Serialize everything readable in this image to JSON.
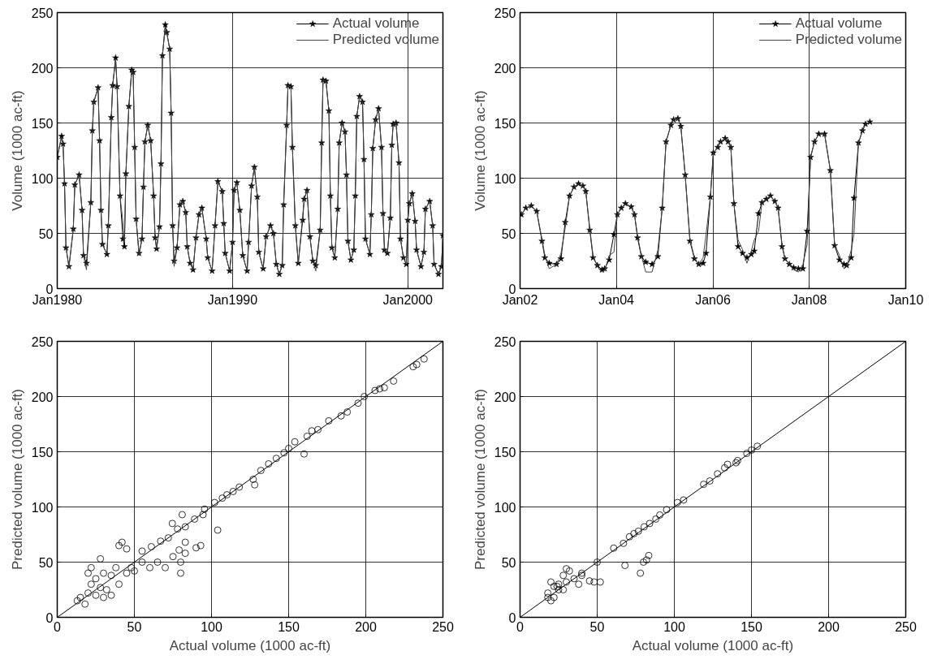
{
  "chart_data": [
    {
      "type": "line",
      "ylabel": "Volume (1000 ac-ft)",
      "xlim": [
        "1980-01",
        "2002-01"
      ],
      "xticks": [
        {
          "value": "1980-01",
          "label": "Jan1980"
        },
        {
          "value": "1990-01",
          "label": "Jan1990"
        },
        {
          "value": "2000-01",
          "label": "Jan2000"
        }
      ],
      "ylim": [
        0,
        250
      ],
      "yticks": [
        0,
        50,
        100,
        150,
        200,
        250
      ],
      "grid": true,
      "legend": "top right",
      "line_style": "solid",
      "series": [
        {
          "name": "Actual volume",
          "color": "#000000",
          "marker": "star",
          "x": [
            "1980-01",
            "1980-04",
            "1980-05",
            "1980-06",
            "1980-07",
            "1980-09",
            "1980-12",
            "1981-01",
            "1981-04",
            "1981-06",
            "1981-07",
            "1981-09",
            "1981-12",
            "1982-01",
            "1982-02",
            "1982-05",
            "1982-06",
            "1982-07",
            "1982-08",
            "1982-11",
            "1982-12",
            "1983-02",
            "1983-03",
            "1983-05",
            "1983-06",
            "1983-08",
            "1983-10",
            "1983-11",
            "1983-12",
            "1984-02",
            "1984-04",
            "1984-05",
            "1984-06",
            "1984-07",
            "1984-09",
            "1984-11",
            "1984-12",
            "1985-01",
            "1985-03",
            "1985-05",
            "1985-07",
            "1985-08",
            "1985-09",
            "1985-11",
            "1985-12",
            "1986-01",
            "1986-03",
            "1986-04",
            "1986-06",
            "1986-07",
            "1986-08",
            "1986-09",
            "1986-11",
            "1987-01",
            "1987-03",
            "1987-05",
            "1987-06",
            "1987-08",
            "1987-10",
            "1987-12",
            "1988-02",
            "1988-04",
            "1988-07",
            "1988-08",
            "1988-11",
            "1989-01",
            "1989-03",
            "1989-06",
            "1989-07",
            "1989-08",
            "1989-11",
            "1990-01",
            "1990-02",
            "1990-04",
            "1990-06",
            "1990-08",
            "1990-11",
            "1990-12",
            "1991-02",
            "1991-04",
            "1991-06",
            "1991-07",
            "1991-10",
            "1991-12",
            "1992-03",
            "1992-05",
            "1992-07",
            "1992-09",
            "1992-11",
            "1992-12",
            "1993-02",
            "1993-03",
            "1993-05",
            "1993-06",
            "1993-08",
            "1993-10",
            "1994-01",
            "1994-02",
            "1994-04",
            "1994-06",
            "1994-08",
            "1994-10",
            "1995-01",
            "1995-02",
            "1995-03",
            "1995-05",
            "1995-07",
            "1995-08",
            "1995-09",
            "1995-11",
            "1996-01",
            "1996-02",
            "1996-04",
            "1996-06",
            "1996-07",
            "1996-08",
            "1996-10",
            "1996-12",
            "1997-01",
            "1997-02",
            "1997-04",
            "1997-06",
            "1997-07",
            "1997-08",
            "1997-11",
            "1997-12",
            "1998-01",
            "1998-03",
            "1998-05",
            "1998-07",
            "1998-08",
            "1998-09",
            "1998-11",
            "1999-01",
            "1999-02",
            "1999-03",
            "1999-05",
            "1999-07",
            "1999-08",
            "1999-10",
            "1999-12",
            "2000-01",
            "2000-02",
            "2000-04",
            "2000-06",
            "2000-07",
            "2000-10",
            "2000-12",
            "2001-01",
            "2001-04",
            "2001-06",
            "2001-07",
            "2001-10",
            "2001-12",
            "2002-01"
          ],
          "values": [
            119,
            138,
            131,
            95,
            37,
            20,
            54,
            94,
            103,
            71,
            30,
            23,
            78,
            143,
            169,
            182,
            134,
            71,
            40,
            31,
            57,
            155,
            184,
            209,
            183,
            84,
            45,
            38,
            104,
            165,
            198,
            196,
            128,
            63,
            32,
            45,
            92,
            133,
            148,
            134,
            84,
            46,
            36,
            56,
            113,
            211,
            239,
            232,
            217,
            159,
            57,
            25,
            37,
            76,
            79,
            69,
            38,
            23,
            17,
            46,
            67,
            73,
            45,
            28,
            16,
            57,
            97,
            88,
            59,
            32,
            16,
            42,
            89,
            96,
            71,
            30,
            16,
            42,
            93,
            110,
            83,
            33,
            18,
            47,
            57,
            50,
            22,
            13,
            21,
            76,
            148,
            184,
            183,
            128,
            57,
            23,
            62,
            81,
            89,
            47,
            25,
            21,
            53,
            132,
            189,
            188,
            161,
            84,
            37,
            28,
            72,
            132,
            150,
            142,
            103,
            43,
            26,
            35,
            84,
            156,
            174,
            169,
            117,
            45,
            31,
            67,
            127,
            153,
            163,
            128,
            68,
            35,
            32,
            64,
            130,
            149,
            150,
            114,
            45,
            28,
            22,
            62,
            77,
            86,
            61,
            35,
            20,
            33,
            72,
            79,
            57,
            22,
            13,
            20,
            48
          ]
        },
        {
          "name": "Predicted volume",
          "color": "#444444",
          "marker": "none",
          "x": [
            "1980-01",
            "1980-04",
            "1980-05",
            "1980-06",
            "1980-07",
            "1980-09",
            "1980-12",
            "1981-01",
            "1981-04",
            "1981-06",
            "1981-07",
            "1981-09",
            "1981-12",
            "1982-01",
            "1982-02",
            "1982-05",
            "1982-06",
            "1982-07",
            "1982-08",
            "1982-11",
            "1982-12",
            "1983-02",
            "1983-03",
            "1983-05",
            "1983-06",
            "1983-08",
            "1983-10",
            "1983-11",
            "1983-12",
            "1984-02",
            "1984-04",
            "1984-05",
            "1984-06",
            "1984-07",
            "1984-09",
            "1984-11",
            "1984-12",
            "1985-01",
            "1985-03",
            "1985-05",
            "1985-07",
            "1985-08",
            "1985-09",
            "1985-11",
            "1985-12",
            "1986-01",
            "1986-03",
            "1986-04",
            "1986-06",
            "1986-07",
            "1986-08",
            "1986-09",
            "1986-11",
            "1987-01",
            "1987-03",
            "1987-05",
            "1987-06",
            "1987-08",
            "1987-10",
            "1987-12",
            "1988-02",
            "1988-04",
            "1988-07",
            "1988-08",
            "1988-11",
            "1989-01",
            "1989-03",
            "1989-06",
            "1989-07",
            "1989-08",
            "1989-11",
            "1990-01",
            "1990-02",
            "1990-04",
            "1990-06",
            "1990-08",
            "1990-11",
            "1990-12",
            "1991-02",
            "1991-04",
            "1991-06",
            "1991-07",
            "1991-10",
            "1991-12",
            "1992-03",
            "1992-05",
            "1992-07",
            "1992-09",
            "1992-11",
            "1992-12",
            "1993-02",
            "1993-03",
            "1993-05",
            "1993-06",
            "1993-08",
            "1993-10",
            "1994-01",
            "1994-02",
            "1994-04",
            "1994-06",
            "1994-08",
            "1994-10",
            "1995-01",
            "1995-02",
            "1995-03",
            "1995-05",
            "1995-07",
            "1995-08",
            "1995-09",
            "1995-11",
            "1996-01",
            "1996-02",
            "1996-04",
            "1996-06",
            "1996-07",
            "1996-08",
            "1996-10",
            "1996-12",
            "1997-01",
            "1997-02",
            "1997-04",
            "1997-06",
            "1997-07",
            "1997-08",
            "1997-11",
            "1997-12",
            "1998-01",
            "1998-03",
            "1998-05",
            "1998-07",
            "1998-08",
            "1998-09",
            "1998-11",
            "1999-01",
            "1999-02",
            "1999-03",
            "1999-05",
            "1999-07",
            "1999-08",
            "1999-10",
            "1999-12",
            "2000-01",
            "2000-02",
            "2000-04",
            "2000-06",
            "2000-07",
            "2000-10",
            "2000-12",
            "2001-01",
            "2001-04",
            "2001-06",
            "2001-07",
            "2001-10",
            "2001-12",
            "2002-01"
          ],
          "values": [
            119,
            137,
            131,
            95,
            38,
            19,
            54,
            94,
            103,
            71,
            30,
            17,
            78,
            143,
            169,
            182,
            134,
            71,
            40,
            31,
            57,
            155,
            184,
            208,
            183,
            84,
            60,
            42,
            104,
            165,
            198,
            196,
            128,
            63,
            30,
            45,
            92,
            133,
            148,
            134,
            84,
            46,
            36,
            56,
            113,
            211,
            237,
            232,
            217,
            159,
            57,
            20,
            37,
            76,
            79,
            69,
            38,
            23,
            17,
            46,
            67,
            73,
            45,
            28,
            16,
            57,
            97,
            88,
            59,
            32,
            16,
            42,
            89,
            96,
            71,
            30,
            16,
            42,
            93,
            110,
            83,
            33,
            18,
            47,
            57,
            50,
            22,
            13,
            21,
            76,
            148,
            184,
            183,
            128,
            57,
            23,
            66,
            81,
            89,
            47,
            25,
            16,
            53,
            132,
            189,
            188,
            161,
            84,
            37,
            28,
            72,
            132,
            150,
            142,
            103,
            43,
            26,
            35,
            84,
            156,
            174,
            169,
            117,
            45,
            31,
            67,
            127,
            153,
            163,
            128,
            68,
            35,
            32,
            64,
            130,
            149,
            150,
            114,
            45,
            28,
            22,
            62,
            77,
            86,
            61,
            35,
            20,
            33,
            72,
            79,
            57,
            22,
            13,
            20,
            48
          ]
        }
      ]
    },
    {
      "type": "line",
      "ylabel": "Volume (1000 ac-ft)",
      "xlim": [
        "2002-01",
        "2010-01"
      ],
      "xticks": [
        {
          "value": "2002-01",
          "label": "Jan02"
        },
        {
          "value": "2004-01",
          "label": "Jan04"
        },
        {
          "value": "2006-01",
          "label": "Jan06"
        },
        {
          "value": "2008-01",
          "label": "Jan08"
        },
        {
          "value": "2010-01",
          "label": "Jan10"
        }
      ],
      "ylim": [
        0,
        250
      ],
      "yticks": [
        0,
        50,
        100,
        150,
        200,
        250
      ],
      "grid": true,
      "legend": "top right",
      "line_style": "solid",
      "series": [
        {
          "name": "Actual volume",
          "color": "#000000",
          "marker": "star",
          "x": [
            "2002-01-11",
            "2002-02-14",
            "2002-03-27",
            "2002-05-07",
            "2002-06-16",
            "2002-07-08",
            "2002-08-10",
            "2002-10-04",
            "2002-11-07",
            "2002-12-09",
            "2003-01-11",
            "2003-02-14",
            "2003-03-20",
            "2003-04-22",
            "2003-05-14",
            "2003-06-13",
            "2003-07-08",
            "2003-08-10",
            "2003-09-13",
            "2003-10-04",
            "2003-11-07",
            "2003-12-13",
            "2004-01-08",
            "2004-02-07",
            "2004-03-09",
            "2004-04-22",
            "2004-05-17",
            "2004-06-09",
            "2004-07-08",
            "2004-08-10",
            "2004-09-27",
            "2004-11-10",
            "2004-12-13",
            "2005-01-11",
            "2005-02-17",
            "2005-03-09",
            "2005-04-11",
            "2005-05-03",
            "2005-06-05",
            "2005-07-11",
            "2005-08-14",
            "2005-09-16",
            "2005-10-19",
            "2005-11-10",
            "2005-12-13",
            "2006-01-04",
            "2006-02-07",
            "2006-02-28",
            "2006-04-04",
            "2006-04-26",
            "2006-05-17",
            "2006-06-09",
            "2006-07-11",
            "2006-08-14",
            "2006-09-16",
            "2006-10-19",
            "2006-11-10",
            "2006-12-13",
            "2007-01-08",
            "2007-02-10",
            "2007-03-13",
            "2007-04-15",
            "2007-05-10",
            "2007-06-09",
            "2007-07-01",
            "2007-08-03",
            "2007-09-05",
            "2007-10-11",
            "2007-11-14",
            "2007-12-16",
            "2008-01-11",
            "2008-02-10",
            "2008-03-13",
            "2008-04-26",
            "2008-06-09",
            "2008-07-11",
            "2008-08-17",
            "2008-09-20",
            "2008-10-11",
            "2008-11-14",
            "2008-12-05",
            "2009-01-08",
            "2009-02-07",
            "2009-03-02",
            "2009-04-04"
          ],
          "values": [
            67,
            73,
            75,
            70,
            43,
            28,
            23,
            22,
            27,
            60,
            84,
            92,
            95,
            93,
            88,
            53,
            28,
            21,
            17,
            18,
            26,
            49,
            67,
            73,
            77,
            74,
            67,
            46,
            29,
            24,
            22,
            29,
            73,
            133,
            148,
            153,
            154,
            147,
            103,
            43,
            27,
            22,
            23,
            32,
            83,
            123,
            128,
            133,
            136,
            133,
            128,
            77,
            38,
            32,
            28,
            31,
            34,
            68,
            78,
            81,
            84,
            79,
            73,
            38,
            27,
            22,
            19,
            18,
            18,
            52,
            119,
            133,
            140,
            140,
            107,
            39,
            26,
            22,
            21,
            28,
            82,
            132,
            143,
            149,
            151
          ]
        },
        {
          "name": "Predicted volume",
          "color": "#444444",
          "marker": "none",
          "x": [
            "2002-01-11",
            "2002-02-14",
            "2002-03-27",
            "2002-05-07",
            "2002-06-16",
            "2002-07-08",
            "2002-08-10",
            "2002-10-04",
            "2002-11-07",
            "2002-12-09",
            "2003-01-11",
            "2003-02-14",
            "2003-03-20",
            "2003-04-22",
            "2003-05-14",
            "2003-06-13",
            "2003-07-08",
            "2003-08-10",
            "2003-09-13",
            "2003-10-04",
            "2003-11-07",
            "2003-12-13",
            "2004-01-08",
            "2004-02-07",
            "2004-03-09",
            "2004-04-22",
            "2004-05-17",
            "2004-06-09",
            "2004-07-08",
            "2004-08-10",
            "2004-09-27",
            "2004-11-10",
            "2004-12-13",
            "2005-01-11",
            "2005-02-17",
            "2005-03-09",
            "2005-04-11",
            "2005-05-03",
            "2005-06-05",
            "2005-07-11",
            "2005-08-14",
            "2005-09-16",
            "2005-10-19",
            "2005-11-10",
            "2005-12-13",
            "2006-01-04",
            "2006-02-07",
            "2006-02-28",
            "2006-04-04",
            "2006-04-26",
            "2006-05-17",
            "2006-06-09",
            "2006-07-11",
            "2006-08-14",
            "2006-09-16",
            "2006-10-19",
            "2006-11-10",
            "2006-12-13",
            "2007-01-08",
            "2007-02-10",
            "2007-03-13",
            "2007-04-15",
            "2007-05-10",
            "2007-06-09",
            "2007-07-01",
            "2007-08-03",
            "2007-09-05",
            "2007-10-11",
            "2007-11-14",
            "2007-12-16",
            "2008-01-11",
            "2008-02-10",
            "2008-03-13",
            "2008-04-26",
            "2008-06-09",
            "2008-07-11",
            "2008-08-17",
            "2008-09-20",
            "2008-10-11",
            "2008-11-14",
            "2008-12-05",
            "2009-01-08",
            "2009-02-07",
            "2009-03-02",
            "2009-04-04"
          ],
          "values": [
            67,
            73,
            75,
            70,
            45,
            30,
            18,
            22,
            32,
            55,
            84,
            92,
            95,
            93,
            88,
            55,
            30,
            20,
            15,
            16,
            30,
            33,
            67,
            73,
            77,
            74,
            67,
            48,
            30,
            15,
            15,
            35,
            73,
            133,
            148,
            153,
            154,
            147,
            103,
            45,
            28,
            22,
            28,
            49,
            83,
            123,
            128,
            133,
            136,
            133,
            128,
            77,
            44,
            35,
            23,
            34,
            44,
            52,
            78,
            81,
            84,
            79,
            73,
            40,
            27,
            22,
            17,
            15,
            22,
            40,
            119,
            133,
            140,
            140,
            107,
            40,
            30,
            18,
            20,
            35,
            49,
            132,
            143,
            149,
            151
          ]
        }
      ]
    },
    {
      "type": "scatter",
      "xlabel": "Actual volume (1000 ac-ft)",
      "ylabel": "Predicted volume (1000 ac-ft)",
      "xlim": [
        0,
        250
      ],
      "xticks": [
        0,
        50,
        100,
        150,
        200,
        250
      ],
      "ylim": [
        0,
        250
      ],
      "yticks": [
        0,
        50,
        100,
        150,
        200,
        250
      ],
      "grid": true,
      "marker": "circle",
      "series": [
        {
          "color": "#000000",
          "x": [
            237.8,
            233,
            230.7,
            218,
            212,
            209,
            206,
            199,
            195,
            188,
            184,
            176,
            169,
            165,
            162,
            160,
            154,
            150,
            147,
            142,
            137,
            132,
            128,
            127,
            118,
            114,
            110,
            107,
            104,
            102,
            95.5,
            94.5,
            89,
            83,
            81,
            78,
            74.6,
            72,
            67,
            83,
            93,
            79,
            83,
            61,
            55,
            13,
            15,
            18,
            20,
            22,
            25,
            25,
            28,
            30,
            32,
            35,
            38,
            40,
            40,
            42,
            45,
            48,
            50,
            20,
            22,
            28,
            30,
            35,
            45,
            55,
            60,
            65,
            70,
            75,
            80,
            80,
            90
          ],
          "values": [
            234,
            229,
            227,
            214,
            208,
            207,
            205.5,
            200,
            194,
            186,
            182.5,
            178,
            170,
            169,
            164,
            148,
            159,
            153,
            149,
            144,
            139,
            133,
            120,
            125,
            118,
            114,
            111,
            108,
            79,
            104,
            98,
            93,
            89,
            82,
            93,
            80,
            85,
            72,
            69,
            68,
            65,
            61,
            58,
            64,
            60,
            15,
            18,
            12,
            22,
            30,
            20,
            35,
            27,
            40,
            25,
            38,
            45,
            30,
            65,
            68,
            40,
            45,
            42,
            40,
            45,
            53,
            18,
            20,
            62,
            50,
            45,
            50,
            45,
            55,
            40,
            50,
            63
          ]
        },
        {
          "type": "line",
          "color": "#000000",
          "marker": "none",
          "x": [
            0,
            250
          ],
          "values": [
            0,
            250
          ]
        }
      ]
    },
    {
      "type": "scatter",
      "xlabel": "Actual volume (1000 ac-ft)",
      "ylabel": "Predicted volume (1000 ac-ft)",
      "xlim": [
        0,
        250
      ],
      "xticks": [
        0,
        50,
        100,
        150,
        200,
        250
      ],
      "ylim": [
        0,
        250
      ],
      "yticks": [
        0,
        50,
        100,
        150,
        200,
        250
      ],
      "grid": true,
      "marker": "circle",
      "series": [
        {
          "color": "#000000",
          "x": [
            153.8,
            150,
            147,
            141,
            140,
            134.5,
            132.6,
            128,
            123,
            119,
            106,
            102,
            95,
            90.6,
            88,
            84,
            80.5,
            76.7,
            73.8,
            70.9,
            67,
            60.7,
            83.4,
            80,
            82,
            78,
            68,
            52,
            48,
            45,
            40,
            38,
            35,
            32,
            30,
            28,
            25,
            22,
            20,
            18,
            20,
            22,
            25,
            28,
            30,
            18,
            24,
            50,
            40
          ],
          "values": [
            155,
            151.5,
            148.5,
            142,
            140,
            138.6,
            135.4,
            130,
            123.5,
            120.5,
            106.3,
            104,
            97.5,
            92.7,
            89,
            85,
            82,
            78,
            75.8,
            73,
            67,
            62.7,
            56,
            50,
            52,
            40,
            47,
            32,
            32,
            33,
            38,
            30,
            35,
            42,
            44,
            38,
            30,
            28,
            32,
            22,
            15,
            18,
            25,
            25,
            32,
            18,
            28,
            50,
            40
          ]
        },
        {
          "type": "line",
          "color": "#000000",
          "marker": "none",
          "x": [
            0,
            250
          ],
          "values": [
            0,
            250
          ]
        }
      ]
    }
  ]
}
